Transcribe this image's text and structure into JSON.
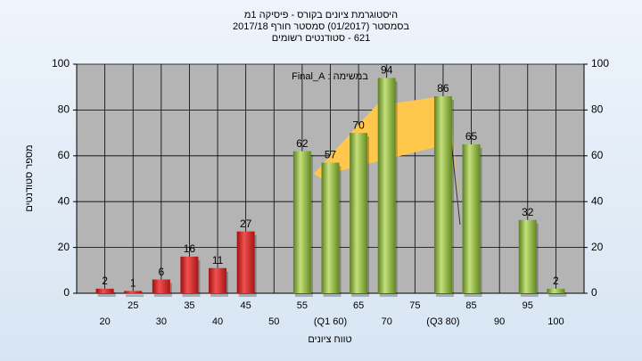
{
  "chart_data": {
    "type": "bar",
    "title": [
      "היסטוגרמת ציונים בקורס - פיסיקה 1מ",
      "בסמסטר  (01/2017)  סמסטר חורף 2017/18",
      "621 - סטודנטים רשומים"
    ],
    "annotation": "במשימה : Final_A",
    "x_label": "טווח ציונים",
    "y_label": "מספר סטודנטים",
    "categories": [
      "20",
      "25",
      "30",
      "35",
      "40",
      "45",
      "50",
      "55",
      "(Q1 60)",
      "65",
      "70",
      "75",
      "(Q3 80)",
      "85",
      "90",
      "95",
      "100"
    ],
    "values": [
      2,
      1,
      6,
      16,
      11,
      27,
      null,
      62,
      57,
      70,
      94,
      null,
      86,
      65,
      null,
      32,
      2
    ],
    "colors": [
      "#d42020",
      "#d42020",
      "#d42020",
      "#d42020",
      "#d42020",
      "#d42020",
      null,
      "#8ab83a",
      "#8ab83a",
      "#8ab83a",
      "#8ab83a",
      null,
      "#8ab83a",
      "#8ab83a",
      null,
      "#8ab83a",
      "#8ab83a"
    ],
    "ylim": [
      0,
      100
    ],
    "yticks": [
      0,
      20,
      40,
      60,
      80,
      100
    ],
    "grid": true
  }
}
